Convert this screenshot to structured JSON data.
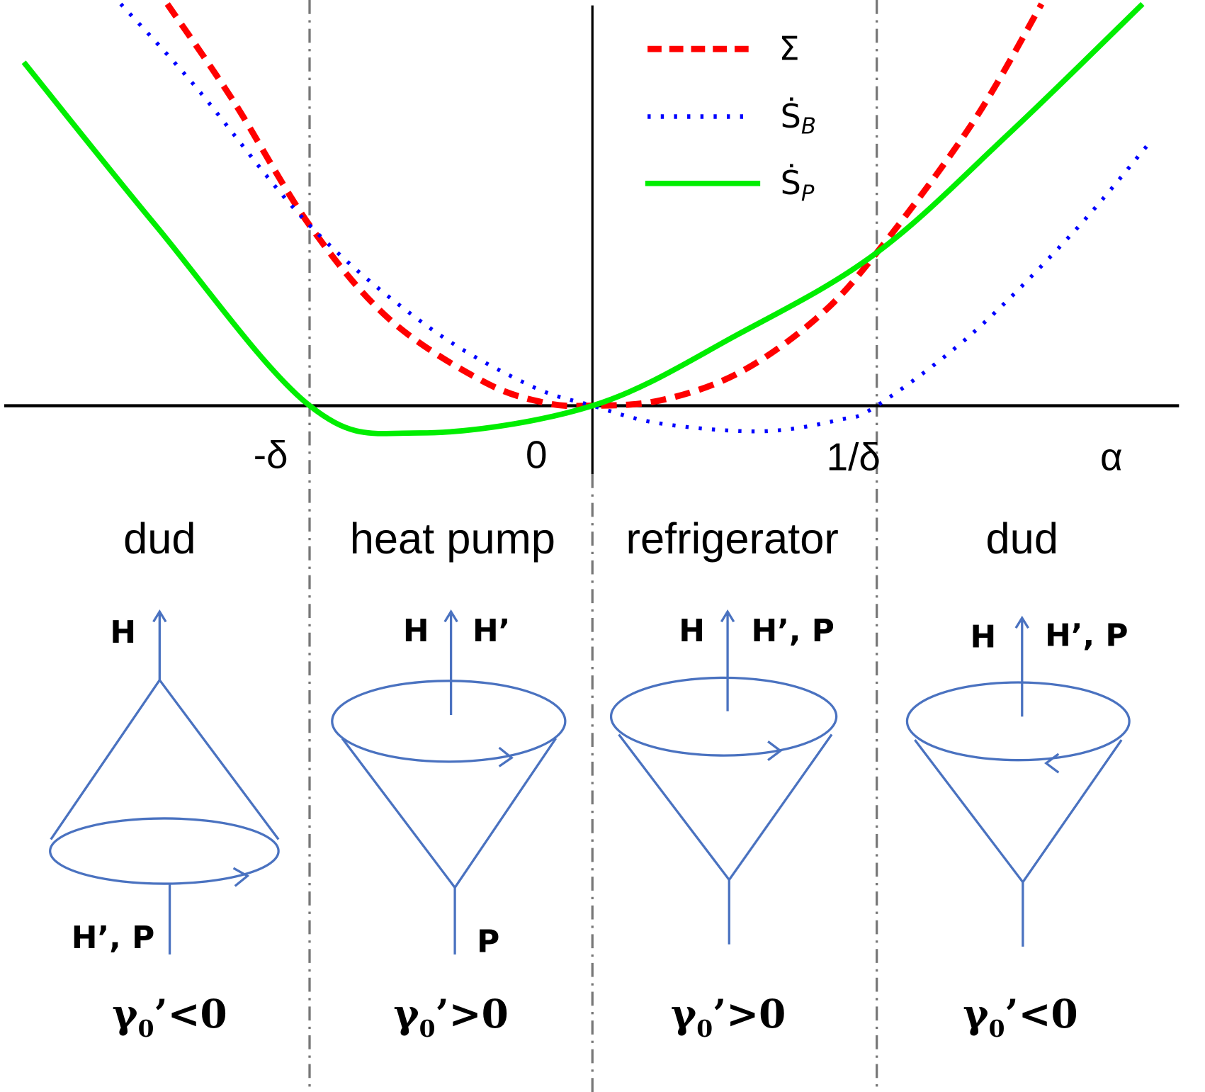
{
  "chart_data": {
    "type": "line",
    "xlabel": "α",
    "x_ticks": [
      {
        "value": -1,
        "label": "-δ"
      },
      {
        "value": 0,
        "label": "0"
      },
      {
        "value": 1,
        "label": "1/δ"
      }
    ],
    "xlim": [
      -2.07,
      2.07
    ],
    "ylim": [
      -0.2,
      2.25
    ],
    "legend_position": "top-right",
    "series": [
      {
        "name": "Σ",
        "color": "#ff0000",
        "style": "dashed",
        "points": [
          [
            -1.499,
            2.228
          ],
          [
            -1.266,
            1.69
          ],
          [
            -0.997,
            1.0
          ],
          [
            -0.718,
            0.483
          ],
          [
            -0.389,
            0.138
          ],
          [
            -0.17,
            0.017
          ],
          [
            0,
            0
          ],
          [
            0.241,
            0.03
          ],
          [
            0.515,
            0.181
          ],
          [
            0.789,
            0.483
          ],
          [
            1.003,
            0.849
          ],
          [
            1.337,
            1.56
          ],
          [
            1.584,
            2.228
          ]
        ]
      },
      {
        "name": "Ṡ",
        "sub": "B",
        "color": "#0000ff",
        "style": "dotted",
        "points": [
          [
            -1.663,
            2.228
          ],
          [
            -1.403,
            1.776
          ],
          [
            -0.997,
            1.0
          ],
          [
            -0.581,
            0.44
          ],
          [
            -0.225,
            0.116
          ],
          [
            0,
            0
          ],
          [
            0.241,
            -0.099
          ],
          [
            0.597,
            -0.142
          ],
          [
            0.871,
            -0.078
          ],
          [
            1.003,
            0
          ],
          [
            1.337,
            0.397
          ],
          [
            1.693,
            0.957
          ],
          [
            1.962,
            1.453
          ]
        ]
      },
      {
        "name": "Ṡ",
        "sub": "P",
        "color": "#00ee00",
        "style": "solid",
        "points": [
          [
            -2.005,
            1.905
          ],
          [
            -1.54,
            1.0
          ],
          [
            -0.997,
            0
          ],
          [
            -0.608,
            -0.151
          ],
          [
            0,
            0
          ],
          [
            0.515,
            0.397
          ],
          [
            1.003,
            0.849
          ],
          [
            1.474,
            1.517
          ],
          [
            1.94,
            2.228
          ]
        ]
      }
    ]
  },
  "regions": [
    {
      "mode": "dud",
      "top": "H",
      "left_top": "",
      "right_top": "",
      "bottom": "H’, P",
      "gamma": "γ",
      "gsub": "0",
      "cond": "’<0"
    },
    {
      "mode": "heat pump",
      "top_left": "H",
      "top_right": "H’",
      "bottom": "P",
      "gamma": "γ",
      "gsub": "0",
      "cond": "’>0"
    },
    {
      "mode": "refrigerator",
      "top_left": "H",
      "top_right": "H’, P",
      "gamma": "γ",
      "gsub": "0",
      "cond": "’>0"
    },
    {
      "mode": "dud",
      "top_left": "H",
      "top_right": "H’, P",
      "gamma": "γ",
      "gsub": "0",
      "cond": "’<0"
    }
  ]
}
